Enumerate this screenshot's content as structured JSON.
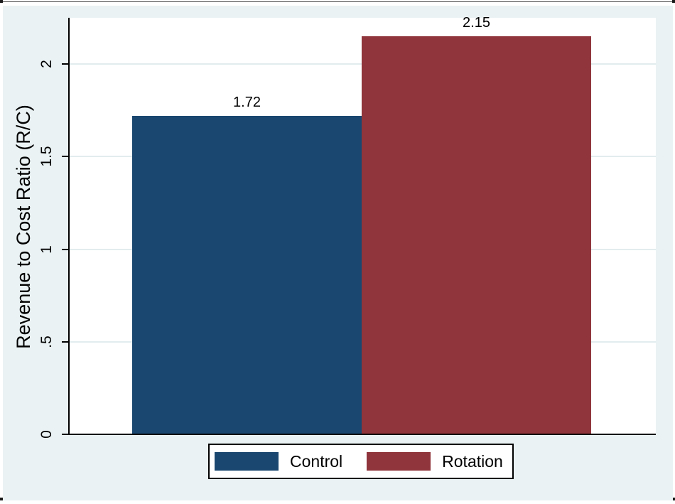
{
  "chart_data": {
    "type": "bar",
    "categories": [
      "Control",
      "Rotation"
    ],
    "values": [
      1.72,
      2.15
    ],
    "value_labels": [
      "1.72",
      "2.15"
    ],
    "series_colors": [
      "#1a476f",
      "#90353b"
    ],
    "title": "",
    "xlabel": "",
    "ylabel": "Revenue to Cost Ratio (R/C)",
    "ylim": [
      0,
      2.25
    ],
    "yticks": [
      {
        "value": 0,
        "label": "0"
      },
      {
        "value": 0.5,
        "label": ".5"
      },
      {
        "value": 1,
        "label": "1"
      },
      {
        "value": 1.5,
        "label": "1.5"
      },
      {
        "value": 2,
        "label": "2"
      }
    ],
    "grid": true,
    "tick_label_rotation": "vertical",
    "legend": {
      "position": "bottom",
      "entries": [
        {
          "label": "Control",
          "color": "#1a476f"
        },
        {
          "label": "Rotation",
          "color": "#90353b"
        }
      ]
    }
  },
  "style": {
    "figure_background": "#eaf2f3",
    "plot_background": "#ffffff",
    "grid_color": "#e2ecee",
    "axis_color": "#000000",
    "text_color": "#000000"
  }
}
